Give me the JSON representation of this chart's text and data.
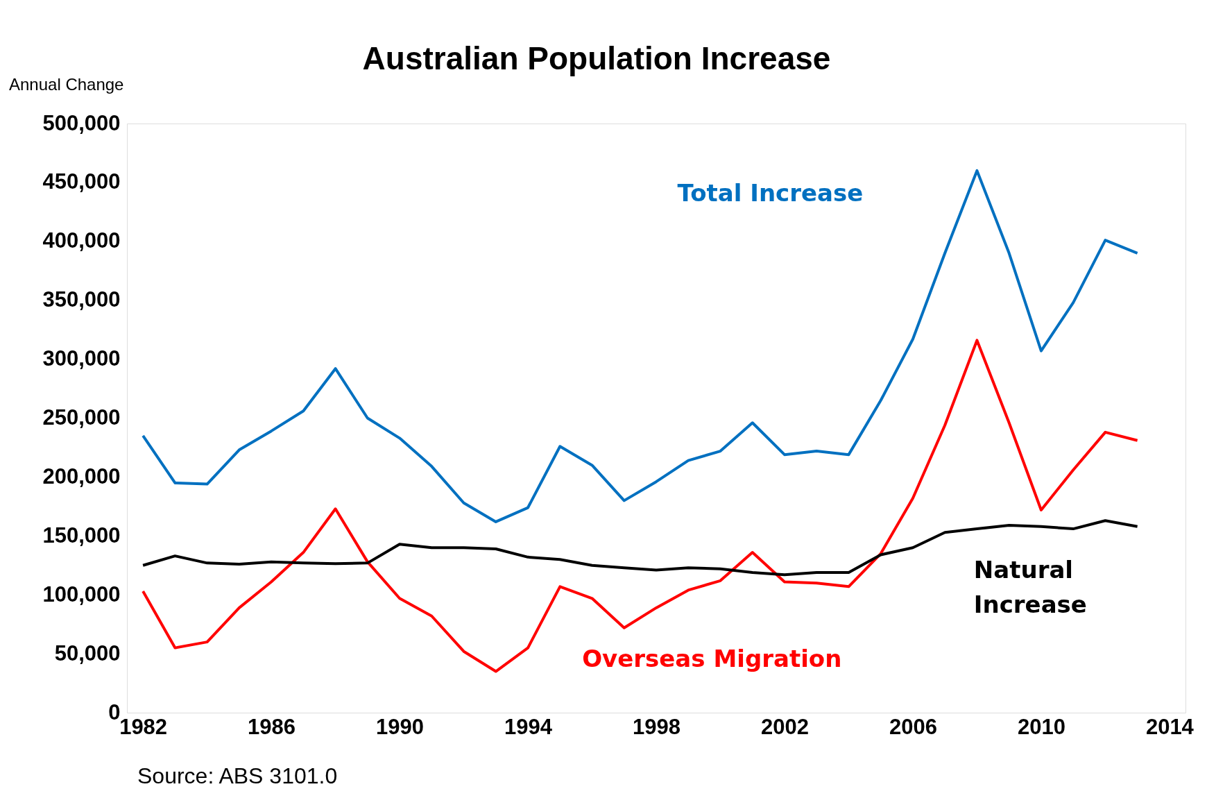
{
  "chart_data": {
    "type": "line",
    "title": "Australian Population Increase",
    "ylabel": "Annual Change",
    "x": [
      1982,
      1983,
      1984,
      1985,
      1986,
      1987,
      1988,
      1989,
      1990,
      1991,
      1992,
      1993,
      1994,
      1995,
      1996,
      1997,
      1998,
      1999,
      2000,
      2001,
      2002,
      2003,
      2004,
      2005,
      2006,
      2007,
      2008,
      2009,
      2010,
      2011,
      2012,
      2013
    ],
    "series": [
      {
        "name": "Total Increase",
        "color": "#0070c0",
        "values": [
          235000,
          195000,
          194000,
          223000,
          239000,
          256000,
          292000,
          250000,
          233000,
          209000,
          178000,
          162000,
          174000,
          226000,
          210000,
          180000,
          196000,
          214000,
          222000,
          246000,
          219000,
          222000,
          219000,
          265000,
          317000,
          390000,
          460000,
          390000,
          307000,
          348000,
          401000,
          390000
        ]
      },
      {
        "name": "Overseas Migration",
        "color": "#ff0000",
        "values": [
          103000,
          55000,
          60000,
          89000,
          111000,
          136000,
          173000,
          128000,
          97000,
          82000,
          52000,
          35000,
          55000,
          107000,
          97000,
          72000,
          89000,
          104000,
          112000,
          136000,
          111000,
          110000,
          107000,
          135000,
          182000,
          244000,
          316000,
          246000,
          172000,
          206000,
          238000,
          231000
        ]
      },
      {
        "name": "Natural Increase",
        "color": "#000000",
        "values": [
          125000,
          133000,
          127000,
          126000,
          128000,
          127000,
          126500,
          127000,
          143000,
          140000,
          140000,
          139000,
          132000,
          130000,
          125000,
          123000,
          121000,
          123000,
          122000,
          119000,
          117000,
          119000,
          119000,
          134000,
          140000,
          153000,
          156000,
          159000,
          158000,
          156000,
          163000,
          158000
        ]
      }
    ],
    "xlim": [
      1981.5,
      2014.5
    ],
    "xticks": [
      1982,
      1986,
      1990,
      1994,
      1998,
      2002,
      2006,
      2010,
      2014
    ],
    "ylim": [
      0,
      500000
    ],
    "yticks": [
      0,
      {
        "value": 50000,
        "label": "50,000"
      },
      {
        "value": 100000,
        "label": "100,000"
      },
      {
        "value": 150000,
        "label": "150,000"
      },
      {
        "value": 200000,
        "label": "200,000"
      },
      {
        "value": 250000,
        "label": "250,000"
      },
      {
        "value": 300000,
        "label": "300,000"
      },
      {
        "value": 350000,
        "label": "350,000"
      },
      {
        "value": 400000,
        "label": "400,000"
      },
      {
        "value": 450000,
        "label": "450,000"
      },
      {
        "value": 500000,
        "label": "500,000"
      }
    ],
    "grid": false,
    "marker": "none",
    "line_style": "solid",
    "annotations": [
      "Source:  ABS 3101.0"
    ]
  }
}
